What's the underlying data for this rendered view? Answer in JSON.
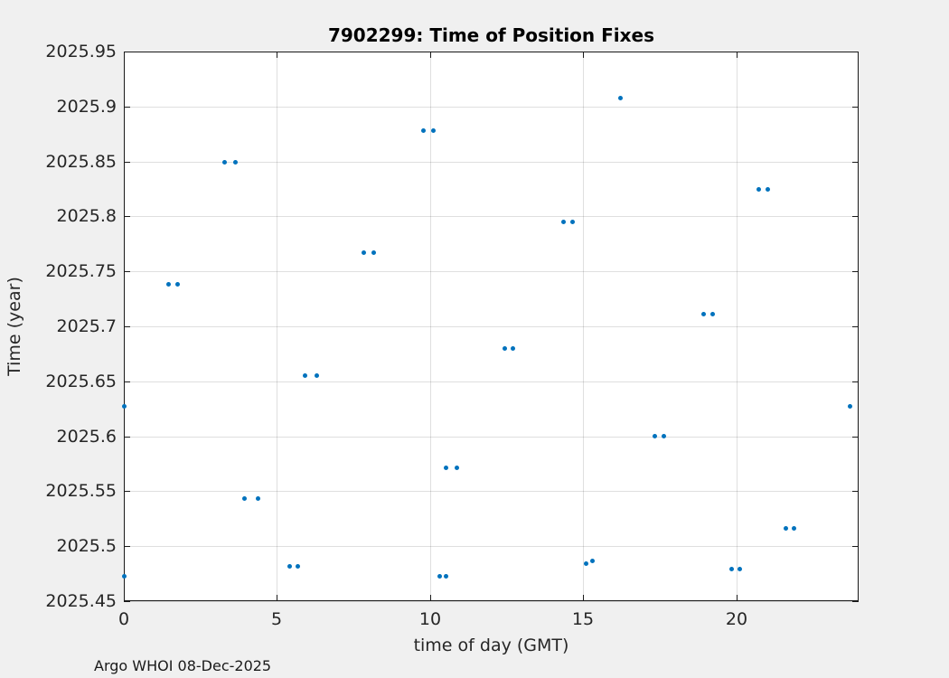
{
  "figure": {
    "background_color": "#f0f0f0",
    "plot_background_color": "#ffffff",
    "axis_color": "#1a1a1a",
    "text_color": "#262626"
  },
  "footer": {
    "text": "Argo WHOI 08-Dec-2025"
  },
  "chart_data": {
    "type": "scatter",
    "title": "7902299: Time of Position Fixes",
    "xlabel": "time of day (GMT)",
    "ylabel": "Time (year)",
    "xlim": [
      0,
      24
    ],
    "ylim": [
      2025.45,
      2025.95
    ],
    "xticks": [
      0,
      5,
      10,
      15,
      20
    ],
    "xtick_labels": [
      "0",
      "5",
      "10",
      "15",
      "20"
    ],
    "yticks": [
      2025.45,
      2025.5,
      2025.55,
      2025.6,
      2025.65,
      2025.7,
      2025.75,
      2025.8,
      2025.85,
      2025.9,
      2025.95
    ],
    "ytick_labels": [
      "2025.45",
      "2025.5",
      "2025.55",
      "2025.6",
      "2025.65",
      "2025.7",
      "2025.75",
      "2025.8",
      "2025.85",
      "2025.9",
      "2025.95"
    ],
    "grid": true,
    "legend": null,
    "marker": "dot",
    "marker_color": "#0072BD",
    "points": [
      [
        0.0,
        2025.627
      ],
      [
        0.0,
        2025.473
      ],
      [
        1.45,
        2025.738
      ],
      [
        1.77,
        2025.738
      ],
      [
        3.28,
        2025.849
      ],
      [
        3.64,
        2025.849
      ],
      [
        3.93,
        2025.543
      ],
      [
        4.38,
        2025.543
      ],
      [
        5.43,
        2025.482
      ],
      [
        5.67,
        2025.482
      ],
      [
        5.92,
        2025.655
      ],
      [
        6.29,
        2025.655
      ],
      [
        7.85,
        2025.767
      ],
      [
        8.17,
        2025.767
      ],
      [
        9.79,
        2025.878
      ],
      [
        10.1,
        2025.878
      ],
      [
        10.31,
        2025.473
      ],
      [
        10.52,
        2025.473
      ],
      [
        10.52,
        2025.571
      ],
      [
        10.87,
        2025.571
      ],
      [
        12.44,
        2025.68
      ],
      [
        12.71,
        2025.68
      ],
      [
        14.36,
        2025.795
      ],
      [
        14.66,
        2025.795
      ],
      [
        15.09,
        2025.484
      ],
      [
        15.31,
        2025.487
      ],
      [
        16.21,
        2025.908
      ],
      [
        17.34,
        2025.6
      ],
      [
        17.65,
        2025.6
      ],
      [
        18.93,
        2025.711
      ],
      [
        19.24,
        2025.711
      ],
      [
        19.85,
        2025.479
      ],
      [
        20.12,
        2025.479
      ],
      [
        20.75,
        2025.825
      ],
      [
        21.03,
        2025.825
      ],
      [
        21.62,
        2025.516
      ],
      [
        21.9,
        2025.516
      ],
      [
        23.73,
        2025.627
      ]
    ]
  }
}
